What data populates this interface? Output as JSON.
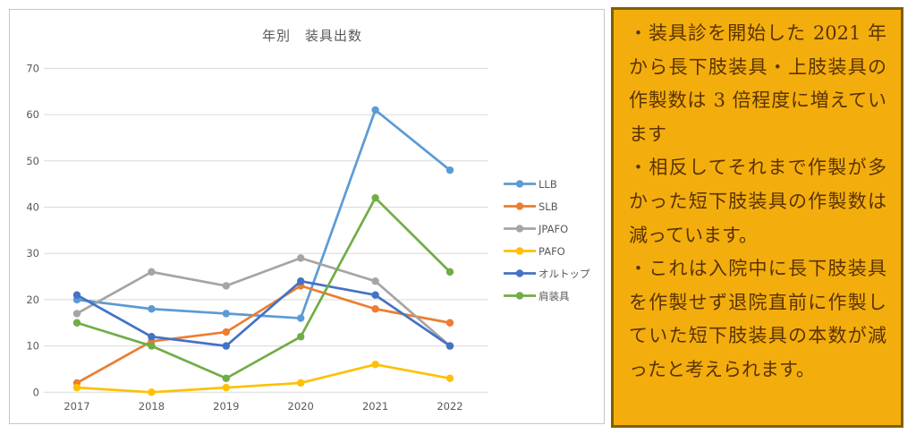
{
  "chart_data": {
    "type": "line",
    "title": "年別　装具出数",
    "x": [
      "2017",
      "2018",
      "2019",
      "2020",
      "2021",
      "2022"
    ],
    "ylim": [
      0,
      70
    ],
    "ytick_step": 10,
    "grid": true,
    "grid_color": "#d9d9d9",
    "label_color": "#595959",
    "legend_position": "right",
    "series": [
      {
        "name": "LLB",
        "color": "#5B9BD5",
        "values": [
          20,
          18,
          17,
          16,
          61,
          48
        ]
      },
      {
        "name": "SLB",
        "color": "#ED7D31",
        "values": [
          2,
          11,
          13,
          23,
          18,
          15
        ]
      },
      {
        "name": "JPAFO",
        "color": "#A5A5A5",
        "values": [
          17,
          26,
          23,
          29,
          24,
          10
        ]
      },
      {
        "name": "PAFO",
        "color": "#FFC000",
        "values": [
          1,
          0,
          1,
          2,
          6,
          3
        ]
      },
      {
        "name": "オルトップ",
        "color": "#4472C4",
        "values": [
          21,
          12,
          10,
          24,
          21,
          10
        ]
      },
      {
        "name": "肩装具",
        "color": "#70AD47",
        "values": [
          15,
          10,
          3,
          12,
          42,
          26
        ]
      }
    ]
  },
  "note_box": {
    "bg": "#F3AE0D",
    "border_color": "#7F6000",
    "text_color": "#5B3300",
    "paragraphs": [
      "・装具診を開始した 2021 年から長下肢装具・上肢装具の作製数は 3 倍程度に増えています",
      "・相反してそれまで作製が多かった短下肢装具の作製数は減っています。",
      "・これは入院中に長下肢装具を作製せず退院直前に作製していた短下肢装具の本数が減ったと考えられます。"
    ]
  }
}
